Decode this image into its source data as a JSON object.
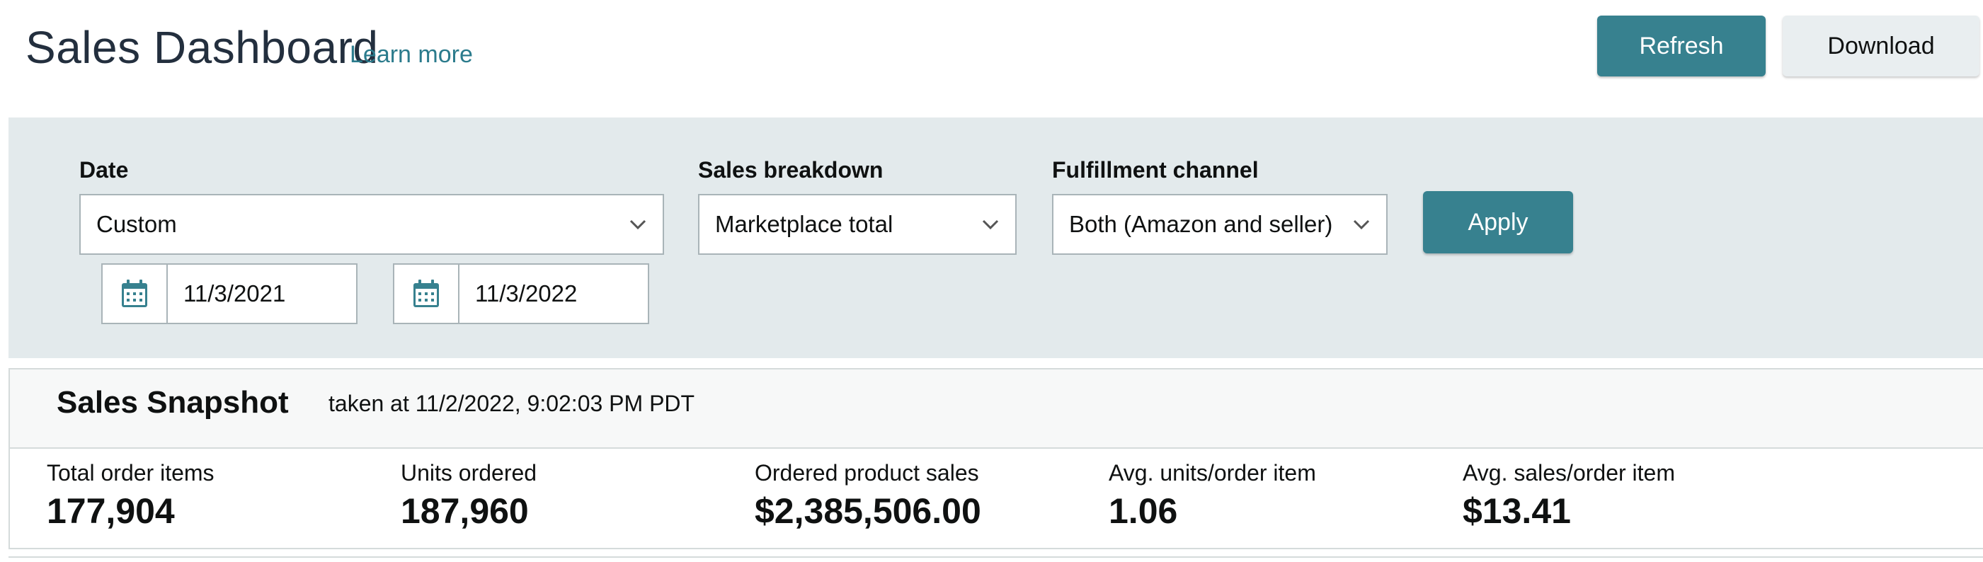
{
  "header": {
    "title": "Sales Dashboard",
    "learn_more": "Learn more",
    "refresh_label": "Refresh",
    "download_label": "Download"
  },
  "filters": {
    "date": {
      "label": "Date",
      "selected": "Custom"
    },
    "sales_breakdown": {
      "label": "Sales breakdown",
      "selected": "Marketplace total"
    },
    "fulfillment_channel": {
      "label": "Fulfillment channel",
      "selected": "Both (Amazon and seller)"
    },
    "start_date": "11/3/2021",
    "end_date": "11/3/2022",
    "apply_label": "Apply"
  },
  "snapshot": {
    "title": "Sales Snapshot",
    "taken_at": "taken at 11/2/2022, 9:02:03 PM PDT",
    "metrics": [
      {
        "label": "Total order items",
        "value": "177,904"
      },
      {
        "label": "Units ordered",
        "value": "187,960"
      },
      {
        "label": "Ordered product sales",
        "value": "$2,385,506.00"
      },
      {
        "label": "Avg. units/order item",
        "value": "1.06"
      },
      {
        "label": "Avg. sales/order item",
        "value": "$13.41"
      }
    ]
  },
  "colors": {
    "accent": "#37818f",
    "link": "#2b7b8c",
    "panel": "#e3eaec",
    "title": "#232f3e"
  },
  "icons": {
    "select_chevron": "chevron-down-icon",
    "date_picker": "calendar-icon"
  }
}
